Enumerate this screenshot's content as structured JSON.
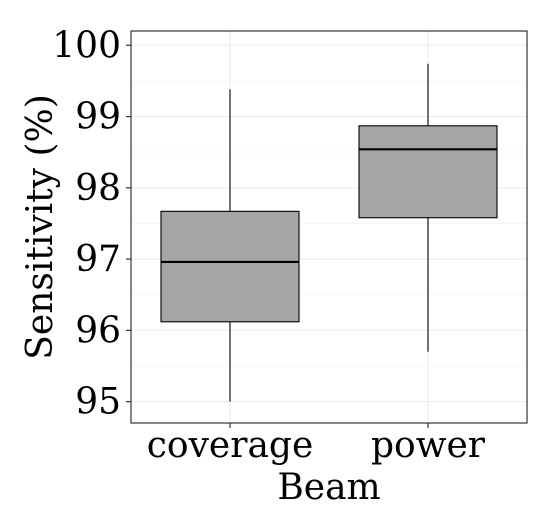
{
  "chart_data": {
    "type": "box",
    "xlabel": "Beam",
    "ylabel": "Sensitivity (%)",
    "ylim": [
      94.7,
      100.2
    ],
    "yticks": [
      95,
      96,
      97,
      98,
      99,
      100
    ],
    "categories": [
      "coverage",
      "power"
    ],
    "boxes": [
      {
        "category": "coverage",
        "min": 95.0,
        "q1": 96.12,
        "median": 96.96,
        "q3": 97.67,
        "max": 99.38
      },
      {
        "category": "power",
        "min": 95.7,
        "q1": 97.58,
        "median": 98.54,
        "q3": 98.87,
        "max": 99.74
      }
    ],
    "grid": true,
    "colors": {
      "box_fill": "#a6a6a6",
      "grid": "#ebebeb",
      "border": "#333333"
    }
  }
}
